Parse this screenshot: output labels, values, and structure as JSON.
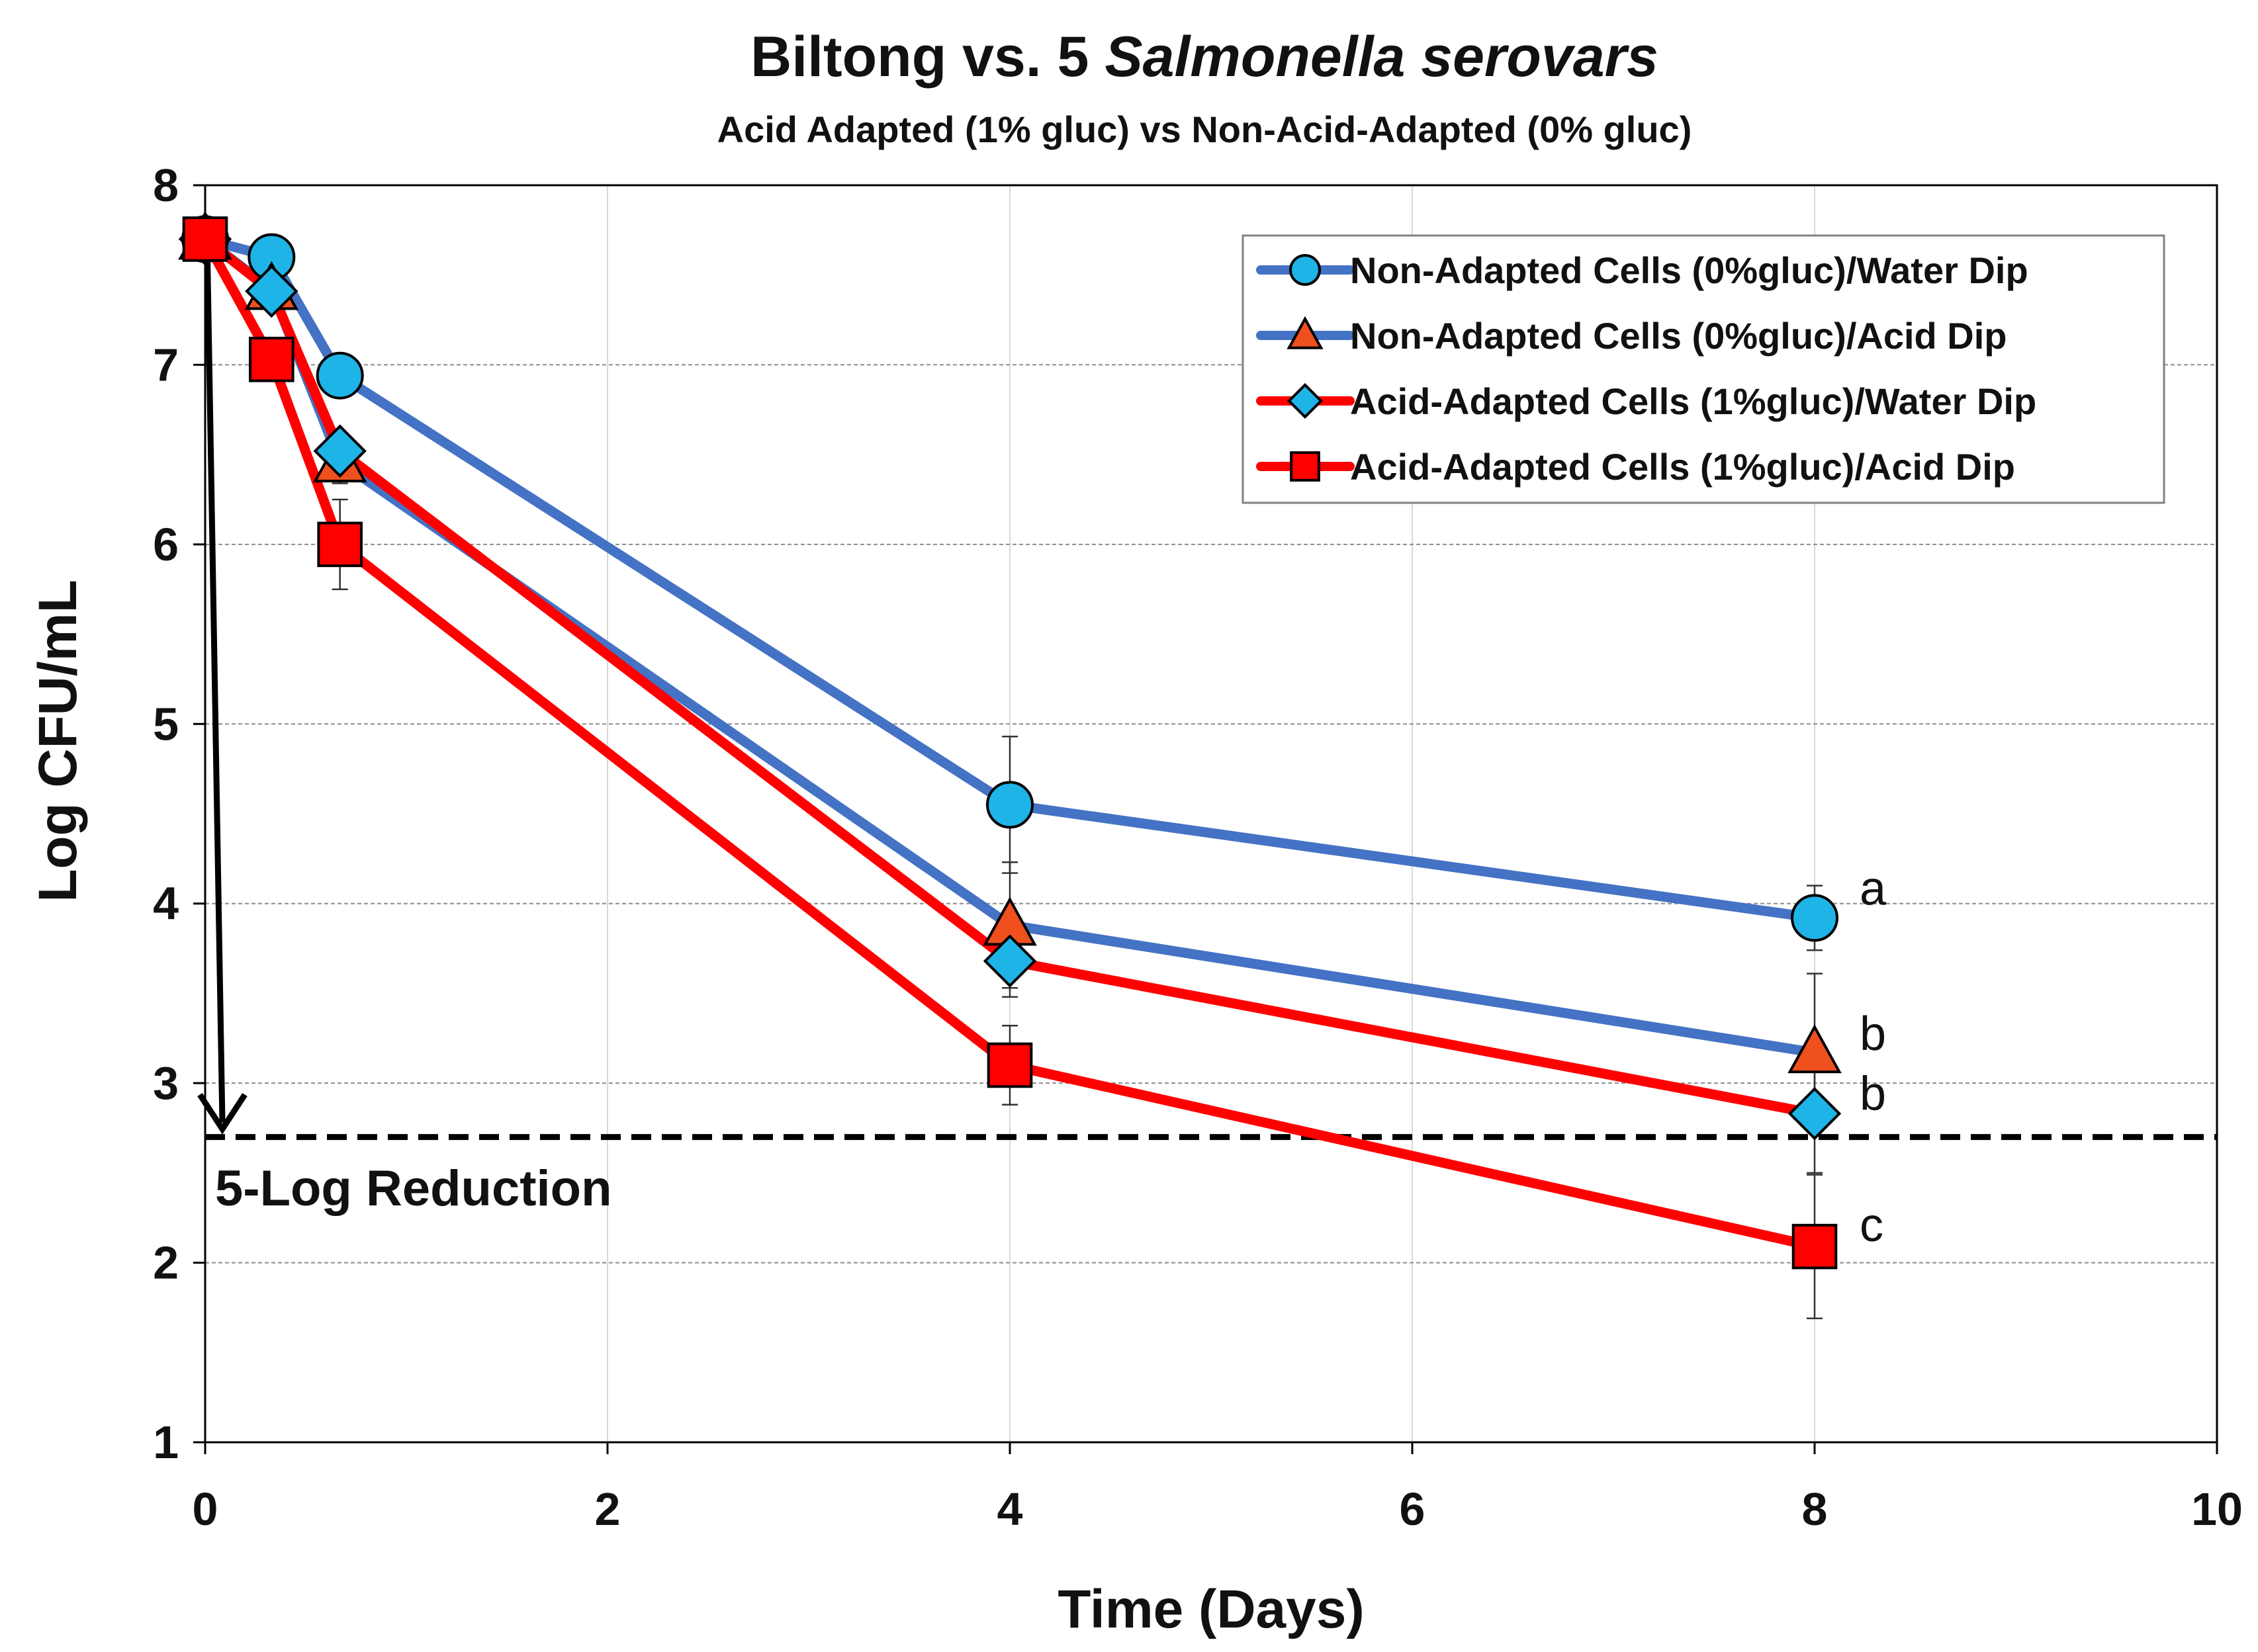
{
  "chart_data": {
    "type": "line",
    "title_prefix": "Biltong vs. 5 ",
    "title_italic": "Salmonella serovars",
    "subtitle": "Acid Adapted (1% gluc) vs Non-Acid-Adapted (0% gluc)",
    "xlabel": "Time (Days)",
    "ylabel": "Log CFU/mL",
    "xlim": [
      0,
      10
    ],
    "ylim": [
      1,
      8
    ],
    "xticks": [
      0,
      2,
      4,
      6,
      8,
      10
    ],
    "yticks": [
      1,
      2,
      3,
      4,
      5,
      6,
      7,
      8
    ],
    "grid": true,
    "legend_position": "top-right",
    "x": [
      0,
      0.33,
      0.67,
      4,
      8
    ],
    "series": [
      {
        "name": "Non-Adapted Cells (0%gluc)/Water Dip",
        "marker": "circle",
        "line_color": "#4472C4",
        "marker_color": "#1FB4E8",
        "values": [
          7.7,
          7.6,
          6.94,
          4.55,
          3.92
        ],
        "errors": [
          0,
          0.05,
          0.08,
          0.38,
          0.18
        ]
      },
      {
        "name": "Non-Adapted Cells (0%gluc)/Acid Dip",
        "marker": "triangle",
        "line_color": "#4472C4",
        "marker_color": "#F0501E",
        "values": [
          7.7,
          7.42,
          6.46,
          3.88,
          3.17
        ],
        "errors": [
          0,
          0.08,
          0.12,
          0.35,
          0.44
        ]
      },
      {
        "name": "Acid-Adapted Cells (1%gluc)/Water Dip",
        "marker": "diamond",
        "line_color": "#FF0000",
        "marker_color": "#1FB4E8",
        "values": [
          7.7,
          7.41,
          6.52,
          3.68,
          2.83
        ],
        "errors": [
          0,
          0.06,
          0.1,
          0.2,
          0.33
        ]
      },
      {
        "name": "Acid-Adapted Cells (1%gluc)/Acid Dip",
        "marker": "square",
        "line_color": "#FF0000",
        "marker_color": "#FF0000",
        "values": [
          7.7,
          7.03,
          6.0,
          3.1,
          2.09
        ],
        "errors": [
          0,
          0.08,
          0.25,
          0.22,
          0.4
        ]
      }
    ],
    "significance_labels": [
      "a",
      "b",
      "b",
      "c"
    ],
    "threshold": {
      "value": 2.7,
      "label": "5-Log Reduction",
      "arrow_from": 7.7
    }
  }
}
